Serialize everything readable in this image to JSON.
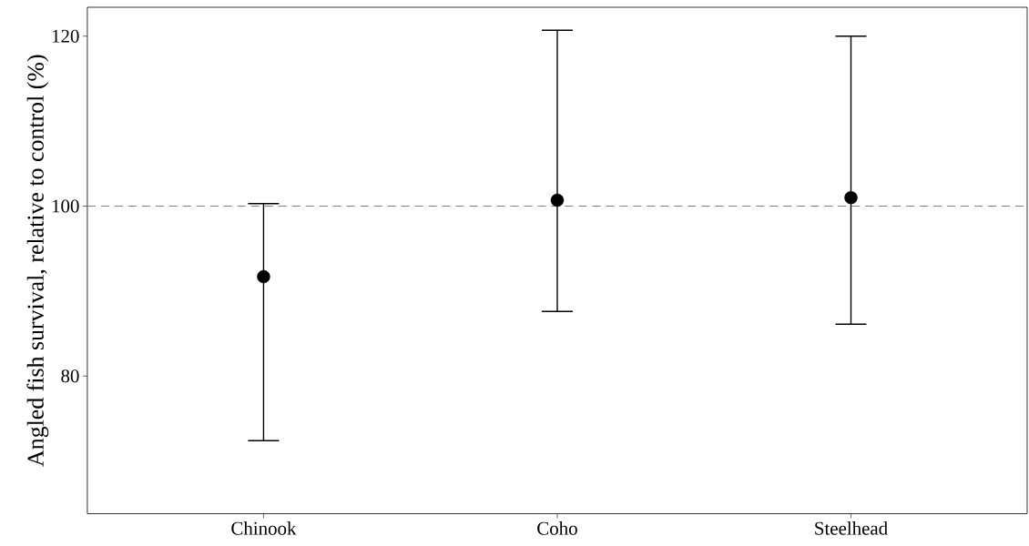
{
  "chart_data": {
    "type": "scatter",
    "ylabel": "Angled fish survival, relative to control (%)",
    "categories": [
      "Chinook",
      "Coho",
      "Steelhead"
    ],
    "series": [
      {
        "color": "#000000",
        "values": [
          91.7,
          100.7,
          101.0
        ],
        "errors": [
          [
            72.4,
            100.3
          ],
          [
            87.6,
            120.7
          ],
          [
            86.1,
            120.0
          ]
        ]
      }
    ],
    "ylim": [
      63.8,
      123.4
    ],
    "yticks": [
      80,
      100,
      120
    ],
    "ref_lines": [
      {
        "axis": "y",
        "value": 100,
        "color": "#808080",
        "line_style": "dashed"
      }
    ]
  }
}
